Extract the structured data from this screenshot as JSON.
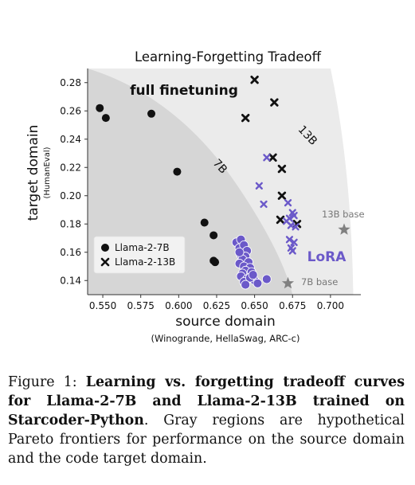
{
  "chart_data": {
    "type": "scatter",
    "title": "Learning-Forgetting Tradeoff",
    "xlabel": "source domain",
    "xlabel_sub": "(Winogrande, HellaSwag, ARC-c)",
    "ylabel": "target domain",
    "ylabel_sub": "(HumanEval)",
    "xlim": [
      0.54,
      0.72
    ],
    "ylim": [
      0.13,
      0.29
    ],
    "xticks": [
      "0.550",
      "0.575",
      "0.600",
      "0.625",
      "0.650",
      "0.675",
      "0.700"
    ],
    "yticks": [
      "0.14",
      "0.16",
      "0.18",
      "0.20",
      "0.22",
      "0.24",
      "0.26",
      "0.28"
    ],
    "grid": false,
    "legend_position": "lower-left",
    "legend": [
      "Llama-2-7B",
      "Llama-2-13B"
    ],
    "annotations": {
      "full_finetuning": "full finetuning",
      "lora": "LoRA",
      "region_7b": "7B",
      "region_13b": "13B",
      "base_7b": "7B base",
      "base_13b": "13B base"
    },
    "colors": {
      "full_finetuning": "#111111",
      "lora": "#6b59c9",
      "base": "#808080",
      "region_outer": "#ebebeb",
      "region_inner": "#d6d6d6"
    },
    "series": [
      {
        "name": "Llama-2-7B",
        "method": "full finetuning",
        "marker": "circle",
        "x": [
          0.548,
          0.552,
          0.582,
          0.599,
          0.617,
          0.623,
          0.623,
          0.624
        ],
        "y": [
          0.262,
          0.255,
          0.258,
          0.217,
          0.181,
          0.172,
          0.154,
          0.153
        ]
      },
      {
        "name": "Llama-2-13B",
        "method": "full finetuning",
        "marker": "x",
        "x": [
          0.65,
          0.644,
          0.663,
          0.662,
          0.668,
          0.668,
          0.667,
          0.678
        ],
        "y": [
          0.282,
          0.255,
          0.266,
          0.227,
          0.219,
          0.2,
          0.183,
          0.18
        ]
      },
      {
        "name": "Llama-2-7B",
        "method": "LoRA",
        "marker": "circle",
        "x": [
          0.638,
          0.641,
          0.64,
          0.643,
          0.645,
          0.641,
          0.644,
          0.642,
          0.646,
          0.64,
          0.643,
          0.647,
          0.644,
          0.642,
          0.648,
          0.641,
          0.645,
          0.65,
          0.643,
          0.647,
          0.652,
          0.644,
          0.649,
          0.658,
          0.64
        ],
        "y": [
          0.167,
          0.169,
          0.163,
          0.165,
          0.161,
          0.158,
          0.157,
          0.155,
          0.153,
          0.152,
          0.15,
          0.149,
          0.147,
          0.145,
          0.146,
          0.143,
          0.141,
          0.14,
          0.139,
          0.142,
          0.138,
          0.137,
          0.144,
          0.141,
          0.16
        ]
      },
      {
        "name": "Llama-2-13B",
        "method": "LoRA",
        "marker": "x",
        "x": [
          0.658,
          0.653,
          0.656,
          0.672,
          0.675,
          0.673,
          0.676,
          0.671,
          0.674,
          0.677,
          0.673,
          0.676,
          0.674,
          0.675
        ],
        "y": [
          0.227,
          0.207,
          0.194,
          0.195,
          0.188,
          0.184,
          0.186,
          0.182,
          0.179,
          0.178,
          0.169,
          0.167,
          0.163,
          0.161
        ]
      },
      {
        "name": "7B base",
        "method": "base",
        "marker": "star",
        "x": [
          0.672
        ],
        "y": [
          0.138
        ]
      },
      {
        "name": "13B base",
        "method": "base",
        "marker": "star",
        "x": [
          0.709
        ],
        "y": [
          0.176
        ]
      }
    ]
  },
  "caption": {
    "label": "Figure 1: ",
    "bold": "Learning vs. forgetting tradeoff curves for Llama-2-7B and Llama-2-13B trained on Starcoder-Python",
    "rest": ". Gray regions are hypothetical Pareto frontiers for performance on the source domain and the code target domain."
  }
}
